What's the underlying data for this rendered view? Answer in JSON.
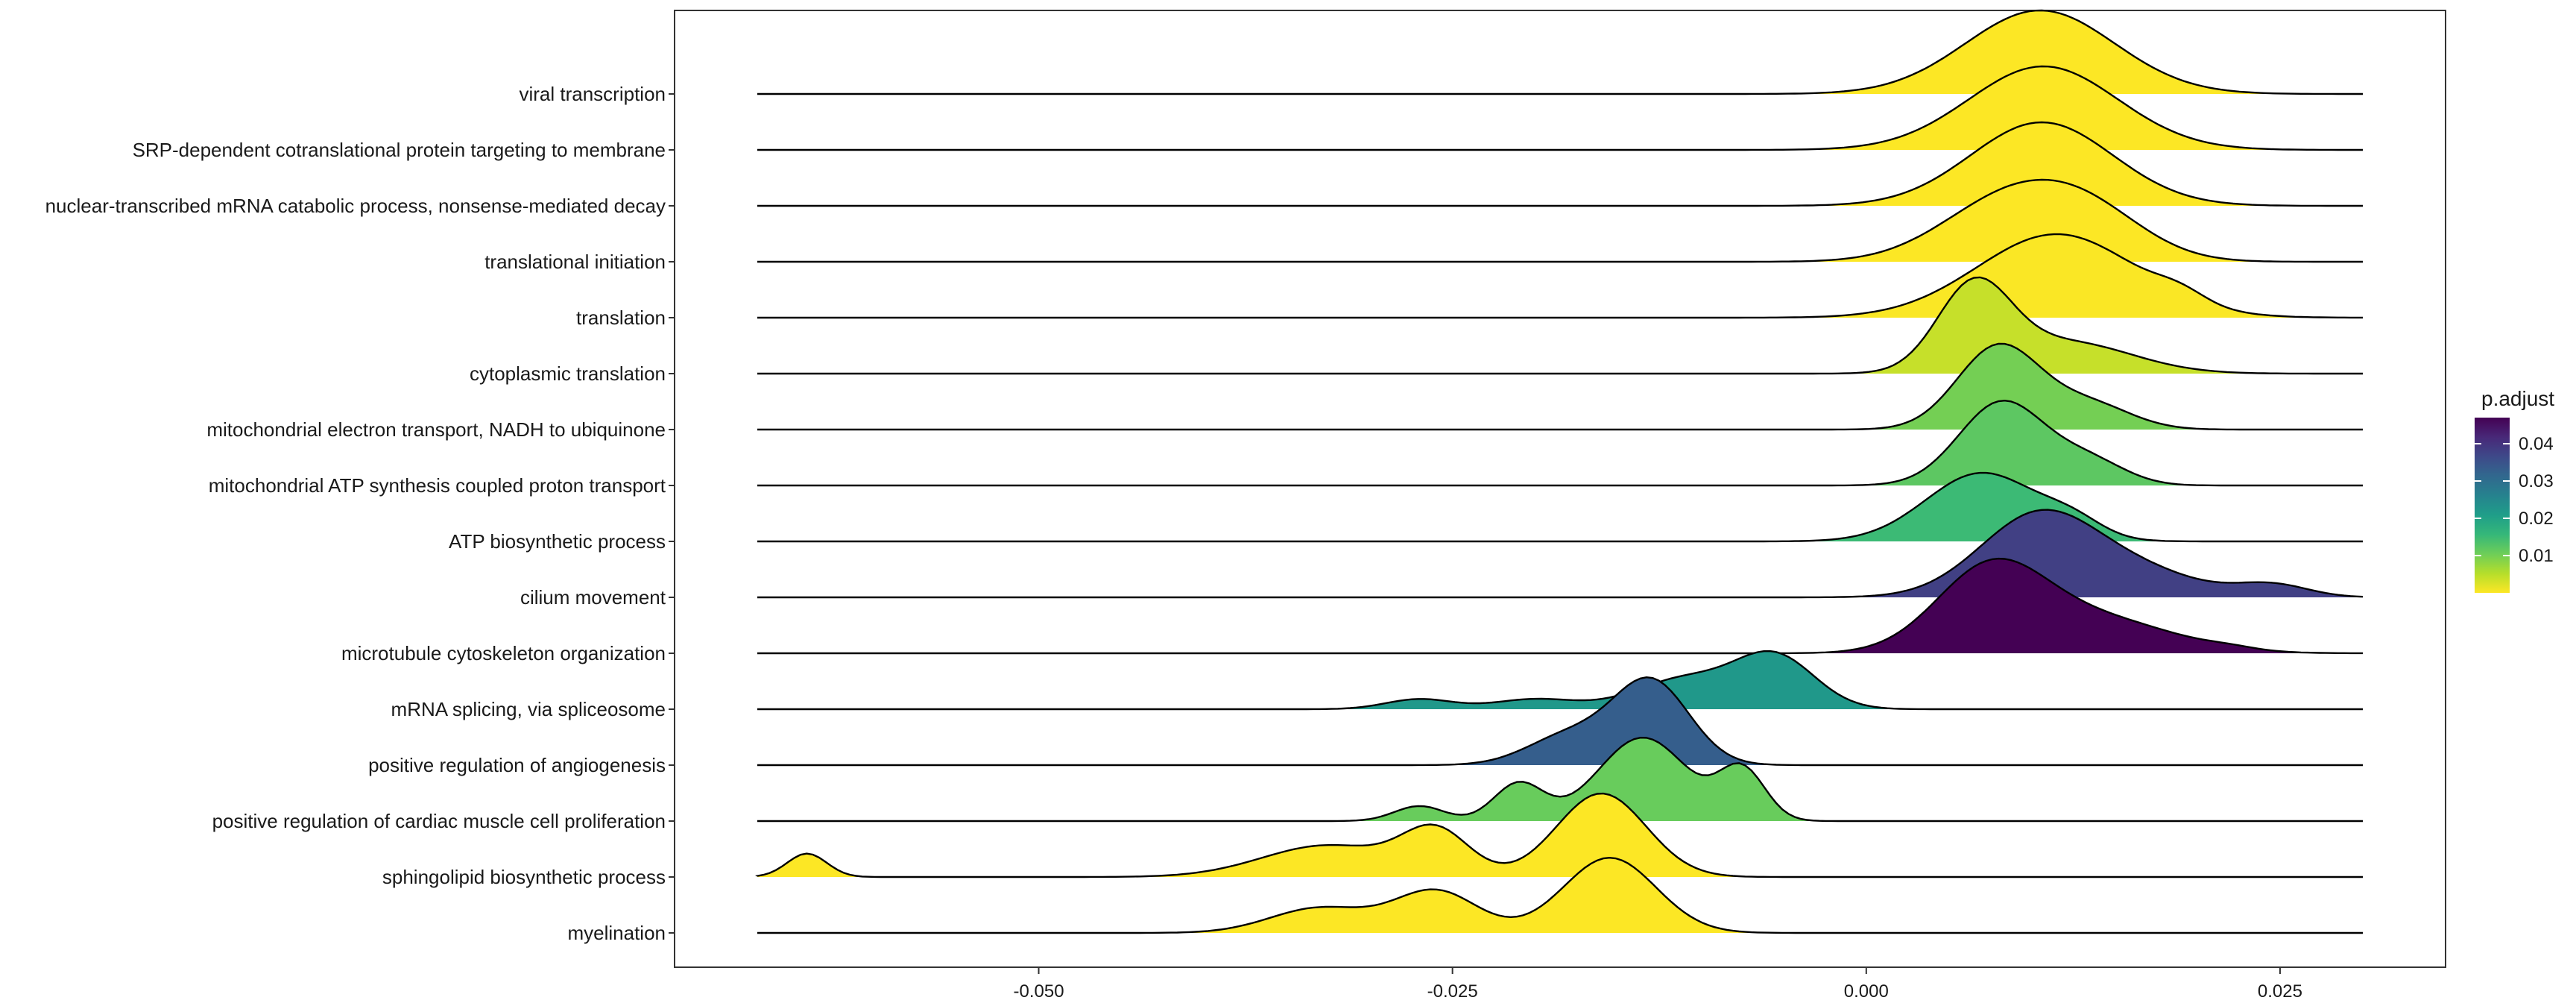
{
  "chart_data": {
    "type": "ridgeline",
    "title": "",
    "xlabel": "",
    "ylabel": "",
    "xlim": [
      -0.072,
      0.035
    ],
    "x_ticks": [
      {
        "value": -0.05,
        "label": "-0.050"
      },
      {
        "value": -0.025,
        "label": "-0.025"
      },
      {
        "value": 0.0,
        "label": "0.000"
      },
      {
        "value": 0.025,
        "label": "0.025"
      }
    ],
    "grid": false,
    "legend": {
      "title": "p.adjust",
      "position": "right",
      "range": [
        0.0,
        0.047
      ],
      "ticks": [
        {
          "value": 0.01,
          "label": "0.01"
        },
        {
          "value": 0.02,
          "label": "0.02"
        },
        {
          "value": 0.03,
          "label": "0.03"
        },
        {
          "value": 0.04,
          "label": "0.04"
        }
      ],
      "colors": [
        "#fde725",
        "#b5de2b",
        "#6ece58",
        "#35b779",
        "#1f9e89",
        "#26828e",
        "#31688e",
        "#3e4989",
        "#482878",
        "#440154"
      ]
    },
    "density_x_range": [
      -0.067,
      0.03
    ],
    "series": [
      {
        "name": "viral transcription",
        "p_adjust": 0.0001,
        "peaks": [
          [
            0.0105,
            0.0045,
            1.0
          ]
        ]
      },
      {
        "name": "SRP-dependent cotranslational protein targeting to membrane",
        "p_adjust": 0.0001,
        "peaks": [
          [
            0.0107,
            0.0045,
            1.0
          ]
        ]
      },
      {
        "name": "nuclear-transcribed mRNA catabolic process, nonsense-mediated decay",
        "p_adjust": 0.0001,
        "peaks": [
          [
            0.0106,
            0.0043,
            1.0
          ]
        ]
      },
      {
        "name": "translational initiation",
        "p_adjust": 0.0001,
        "peaks": [
          [
            0.0085,
            0.004,
            0.72
          ],
          [
            0.0135,
            0.0035,
            0.5
          ]
        ]
      },
      {
        "name": "translation",
        "p_adjust": 0.0002,
        "peaks": [
          [
            0.0115,
            0.0048,
            1.0
          ],
          [
            0.019,
            0.0015,
            0.12
          ]
        ]
      },
      {
        "name": "cytoplasmic translation",
        "p_adjust": 0.004,
        "peaks": [
          [
            0.0065,
            0.0022,
            1.0
          ],
          [
            0.012,
            0.004,
            0.38
          ]
        ]
      },
      {
        "name": "mitochondrial electron transport, NADH to ubiquinone",
        "p_adjust": 0.01,
        "peaks": [
          [
            0.008,
            0.0025,
            1.0
          ],
          [
            0.0135,
            0.0025,
            0.3
          ]
        ]
      },
      {
        "name": "mitochondrial ATP synthesis coupled proton transport",
        "p_adjust": 0.012,
        "peaks": [
          [
            0.0082,
            0.0026,
            1.0
          ],
          [
            0.0135,
            0.0022,
            0.28
          ]
        ]
      },
      {
        "name": "ATP biosynthetic process",
        "p_adjust": 0.015,
        "peaks": [
          [
            0.007,
            0.0034,
            0.82
          ],
          [
            0.0125,
            0.0018,
            0.18
          ]
        ]
      },
      {
        "name": "cilium movement",
        "p_adjust": 0.038,
        "peaks": [
          [
            0.0105,
            0.0036,
            1.0
          ],
          [
            0.017,
            0.0035,
            0.25
          ],
          [
            0.0245,
            0.0022,
            0.15
          ]
        ]
      },
      {
        "name": "microtubule cytoskeleton organization",
        "p_adjust": 0.047,
        "peaks": [
          [
            0.0075,
            0.0033,
            0.98
          ],
          [
            0.014,
            0.0045,
            0.4
          ],
          [
            0.022,
            0.0015,
            0.03
          ]
        ]
      },
      {
        "name": "mRNA splicing, via spliceosome",
        "p_adjust": 0.022,
        "peaks": [
          [
            -0.0055,
            0.0024,
            0.62
          ],
          [
            -0.011,
            0.003,
            0.36
          ],
          [
            -0.02,
            0.0025,
            0.12
          ],
          [
            -0.027,
            0.002,
            0.12
          ]
        ]
      },
      {
        "name": "positive regulation of angiogenesis",
        "p_adjust": 0.033,
        "peaks": [
          [
            -0.013,
            0.0023,
            1.0
          ],
          [
            -0.018,
            0.0025,
            0.35
          ]
        ]
      },
      {
        "name": "positive regulation of cardiac muscle cell proliferation",
        "p_adjust": 0.011,
        "peaks": [
          [
            -0.0135,
            0.0027,
            1.0
          ],
          [
            -0.0075,
            0.0014,
            0.6
          ],
          [
            -0.021,
            0.0015,
            0.45
          ],
          [
            -0.027,
            0.0015,
            0.18
          ]
        ]
      },
      {
        "name": "sphingolipid biosynthetic process",
        "p_adjust": 0.0001,
        "peaks": [
          [
            -0.016,
            0.0027,
            1.0
          ],
          [
            -0.026,
            0.002,
            0.52
          ],
          [
            -0.0325,
            0.004,
            0.38
          ],
          [
            -0.064,
            0.0012,
            0.28
          ]
        ]
      },
      {
        "name": "myelination",
        "p_adjust": 0.0001,
        "peaks": [
          [
            -0.0155,
            0.0028,
            0.9
          ],
          [
            -0.026,
            0.0025,
            0.5
          ],
          [
            -0.033,
            0.003,
            0.3
          ]
        ]
      }
    ]
  }
}
